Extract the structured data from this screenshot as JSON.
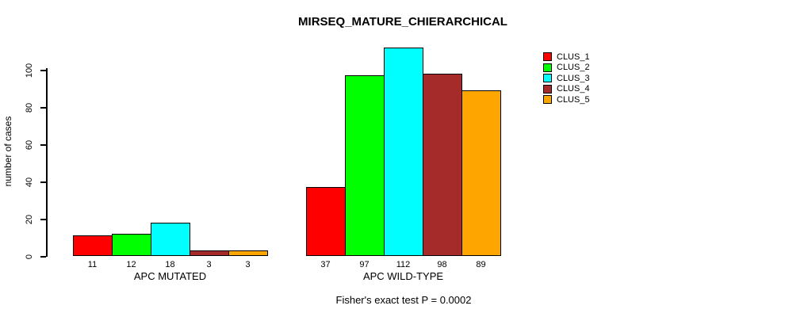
{
  "chart_data": {
    "type": "bar",
    "title": "MIRSEQ_MATURE_CHIERARCHICAL",
    "subtitle": "Fisher's exact test P = 0.0002",
    "ylabel": "number of cases",
    "xlabel": "",
    "yticks": [
      0,
      20,
      40,
      60,
      80,
      100
    ],
    "ylim": [
      0,
      112
    ],
    "grid": false,
    "legend_position": "right",
    "background_color": "#ffffff",
    "bar_border_color": "#000000",
    "groups": [
      {
        "label": "APC MUTATED",
        "values": [
          11,
          12,
          18,
          3,
          3
        ]
      },
      {
        "label": "APC WILD-TYPE",
        "values": [
          37,
          97,
          112,
          98,
          89
        ]
      }
    ],
    "series": [
      {
        "name": "CLUS_1",
        "color": "#FF0000",
        "values": [
          11,
          37
        ]
      },
      {
        "name": "CLUS_2",
        "color": "#00FF00",
        "values": [
          12,
          97
        ]
      },
      {
        "name": "CLUS_3",
        "color": "#00FFFF",
        "values": [
          18,
          112
        ]
      },
      {
        "name": "CLUS_4",
        "color": "#A52A2A",
        "values": [
          3,
          98
        ]
      },
      {
        "name": "CLUS_5",
        "color": "#FFA500",
        "values": [
          3,
          89
        ]
      }
    ],
    "legend": [
      {
        "label": "CLUS_1",
        "color": "#FF0000"
      },
      {
        "label": "CLUS_2",
        "color": "#00FF00"
      },
      {
        "label": "CLUS_3",
        "color": "#00FFFF"
      },
      {
        "label": "CLUS_4",
        "color": "#A52A2A"
      },
      {
        "label": "CLUS_5",
        "color": "#FFA500"
      }
    ]
  }
}
